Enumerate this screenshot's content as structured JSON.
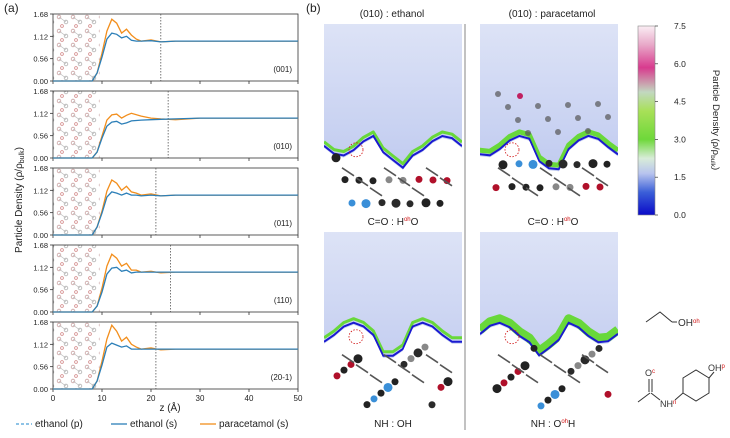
{
  "figure": {
    "panel_a_label": "(a)",
    "panel_b_label": "(b)",
    "ylabel": "Particle Density (ρ/ρ",
    "ylabel_sub": "bulk",
    "ylabel_close": ")",
    "xlabel": "z (Å)",
    "legend": [
      {
        "label": "ethanol (p)",
        "color": "#4a9fd8",
        "dash": true
      },
      {
        "label": "ethanol (s)",
        "color": "#2c7fb8",
        "dash": false
      },
      {
        "label": "paracetamol (s)",
        "color": "#f28e1c",
        "dash": false
      }
    ],
    "colorbar": {
      "title": "Particle Density (ρ/ρ",
      "title_sub": "bulk",
      "title_close": ")",
      "ticks": [
        "7.5",
        "6.0",
        "4.5",
        "3.0",
        "1.5",
        "0.0"
      ]
    },
    "map_titles": [
      "(010) : ethanol",
      "(010) : paracetamol"
    ],
    "map_captions": [
      "C=O : H",
      "oh",
      "O",
      "C=O : H",
      "oh",
      "O",
      "NH : OH",
      "NH : O",
      "oh",
      "H"
    ],
    "molecules": {
      "ethanol": "OH",
      "ethanol_sup": "oh",
      "para_c": "O",
      "para_c_sup": "c",
      "para_n": "NH",
      "para_n_sup": "n",
      "para_oh": "OH",
      "para_oh_sup": "p"
    }
  },
  "chart_data": {
    "type": "line",
    "xlim": [
      0,
      50
    ],
    "ylim": [
      0,
      1.68
    ],
    "x_ticks": [
      0,
      10,
      20,
      30,
      40,
      50
    ],
    "y_ticks": [
      "0.00",
      "0.56",
      "1.12",
      "1.68"
    ],
    "subplots": [
      {
        "facet": "(001)",
        "dashed_line_x": 22.0,
        "series": [
          {
            "name": "ethanol (s)",
            "x": [
              0,
              8,
              9,
              10,
              11,
              12,
              13,
              14,
              15,
              16,
              17,
              18,
              20,
              22,
              25,
              30,
              35,
              40,
              45,
              50
            ],
            "y": [
              0,
              0,
              0.2,
              0.6,
              1.05,
              1.2,
              1.17,
              1.08,
              1.12,
              1.02,
              1.0,
              1.0,
              1.01,
              0.98,
              1.0,
              1.0,
              1.0,
              1.0,
              1.0,
              1.0
            ]
          },
          {
            "name": "paracetamol (s)",
            "x": [
              0,
              8,
              9,
              10,
              11,
              12,
              13,
              14,
              15,
              16,
              17,
              18,
              20,
              22,
              25,
              30,
              35,
              40,
              45,
              50
            ],
            "y": [
              0,
              0,
              0.2,
              0.7,
              1.25,
              1.55,
              1.45,
              1.2,
              1.3,
              1.15,
              1.05,
              1.0,
              1.03,
              0.98,
              1.0,
              1.0,
              1.0,
              1.0,
              1.0,
              1.0
            ]
          }
        ]
      },
      {
        "facet": "(010)",
        "dashed_line_x": 23.5,
        "series": [
          {
            "name": "ethanol (s)",
            "x": [
              0,
              8,
              9,
              10,
              11,
              12,
              13,
              14,
              15,
              16,
              18,
              20,
              22,
              25,
              30,
              35,
              40,
              45,
              50
            ],
            "y": [
              0,
              0,
              0.15,
              0.5,
              0.8,
              0.9,
              0.92,
              0.85,
              0.88,
              0.93,
              0.95,
              0.96,
              0.97,
              0.98,
              1.0,
              1.0,
              1.0,
              1.0,
              1.0
            ]
          },
          {
            "name": "paracetamol (s)",
            "x": [
              0,
              8,
              9,
              10,
              11,
              12,
              13,
              14,
              15,
              16,
              18,
              20,
              22,
              25,
              30,
              35,
              40,
              45,
              50
            ],
            "y": [
              0,
              0,
              0.15,
              0.55,
              0.95,
              1.08,
              1.1,
              1.0,
              1.07,
              1.12,
              1.05,
              1.0,
              0.98,
              0.96,
              1.0,
              1.0,
              1.0,
              1.0,
              1.0
            ]
          }
        ]
      },
      {
        "facet": "(011)",
        "dashed_line_x": 21.0,
        "series": [
          {
            "name": "ethanol (s)",
            "x": [
              0,
              8,
              9,
              10,
              11,
              12,
              13,
              14,
              15,
              16,
              17,
              18,
              20,
              22,
              25,
              30,
              35,
              40,
              45,
              50
            ],
            "y": [
              0,
              0,
              0.2,
              0.55,
              0.95,
              1.08,
              1.05,
              1.0,
              1.05,
              1.0,
              1.0,
              0.98,
              1.0,
              0.98,
              1.0,
              1.0,
              1.0,
              1.0,
              1.0,
              1.0
            ]
          },
          {
            "name": "paracetamol (s)",
            "x": [
              0,
              8,
              9,
              10,
              11,
              12,
              13,
              14,
              15,
              16,
              17,
              18,
              20,
              22,
              25,
              30,
              35,
              40,
              45,
              50
            ],
            "y": [
              0,
              0,
              0.2,
              0.6,
              1.1,
              1.38,
              1.3,
              1.12,
              1.22,
              1.08,
              1.05,
              1.0,
              1.03,
              0.98,
              1.0,
              1.0,
              1.0,
              1.0,
              1.0,
              1.0
            ]
          }
        ]
      },
      {
        "facet": "(110)",
        "dashed_line_x": 24.0,
        "series": [
          {
            "name": "ethanol (s)",
            "x": [
              0,
              8,
              9,
              10,
              11,
              12,
              13,
              14,
              15,
              16,
              17,
              18,
              20,
              22,
              25,
              30,
              35,
              40,
              45,
              50
            ],
            "y": [
              0,
              0,
              0.15,
              0.5,
              0.95,
              1.1,
              1.12,
              1.02,
              1.05,
              0.98,
              1.0,
              1.0,
              1.0,
              1.0,
              1.0,
              1.0,
              1.0,
              1.0,
              1.0,
              1.0
            ]
          },
          {
            "name": "paracetamol (s)",
            "x": [
              0,
              8,
              9,
              10,
              11,
              12,
              13,
              14,
              15,
              16,
              17,
              18,
              20,
              22,
              25,
              30,
              35,
              40,
              45,
              50
            ],
            "y": [
              0,
              0,
              0.15,
              0.6,
              1.15,
              1.45,
              1.35,
              1.15,
              1.22,
              1.05,
              1.05,
              1.0,
              1.02,
              0.98,
              1.0,
              1.0,
              1.0,
              1.0,
              1.0,
              1.0
            ]
          }
        ]
      },
      {
        "facet": "(20-1)",
        "dashed_line_x": 21.0,
        "series": [
          {
            "name": "ethanol (s)",
            "x": [
              0,
              8,
              9,
              10,
              11,
              12,
              13,
              14,
              15,
              16,
              17,
              18,
              20,
              22,
              25,
              30,
              35,
              40,
              45,
              50
            ],
            "y": [
              0,
              0,
              0.2,
              0.6,
              1.05,
              1.15,
              1.1,
              1.05,
              1.08,
              1.0,
              1.0,
              1.0,
              1.0,
              1.0,
              1.0,
              1.0,
              1.0,
              1.0,
              1.0,
              1.0
            ]
          },
          {
            "name": "paracetamol (s)",
            "x": [
              0,
              8,
              9,
              10,
              11,
              12,
              13,
              14,
              15,
              16,
              17,
              18,
              20,
              22,
              25,
              30,
              35,
              40,
              45,
              50
            ],
            "y": [
              0,
              0,
              0.2,
              0.7,
              1.25,
              1.6,
              1.45,
              1.2,
              1.3,
              1.12,
              1.05,
              1.0,
              1.03,
              0.98,
              1.0,
              1.0,
              1.0,
              1.0,
              1.0,
              1.0
            ]
          }
        ]
      }
    ]
  }
}
